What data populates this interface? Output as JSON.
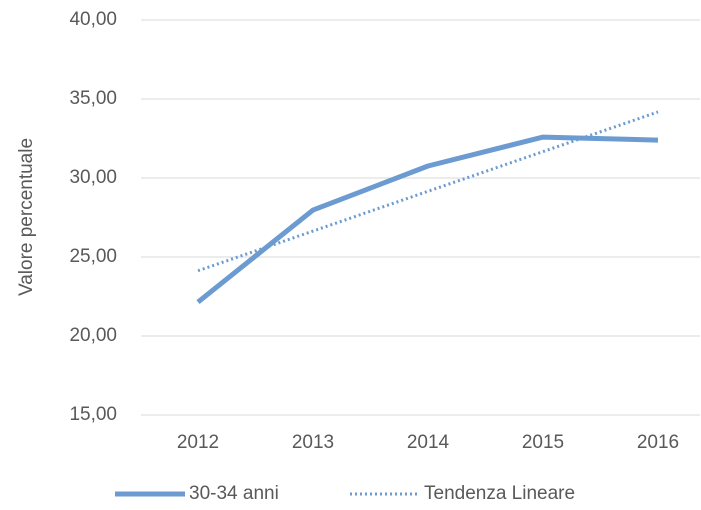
{
  "chart_data": {
    "type": "line",
    "ylabel": "Valore percentuale",
    "categories": [
      "2012",
      "2013",
      "2014",
      "2015",
      "2016"
    ],
    "series": [
      {
        "name": "30-34 anni",
        "color": "#6b9bd1",
        "style": "solid",
        "values": [
          22.15,
          27.97,
          30.76,
          32.59,
          32.4
        ]
      },
      {
        "name": "Tendenza Lineare",
        "color": "#6b9bd1",
        "style": "dotted",
        "values": [
          24.13,
          26.64,
          29.16,
          31.67,
          34.18
        ]
      }
    ],
    "ylim": [
      15,
      40
    ],
    "yticks": [
      {
        "value": 15,
        "label": "15,00"
      },
      {
        "value": 20,
        "label": "20,00"
      },
      {
        "value": 25,
        "label": "25,00"
      },
      {
        "value": 30,
        "label": "30,00"
      },
      {
        "value": 35,
        "label": "35,00"
      },
      {
        "value": 40,
        "label": "40,00"
      }
    ],
    "grid": true,
    "legend": "bottom"
  }
}
